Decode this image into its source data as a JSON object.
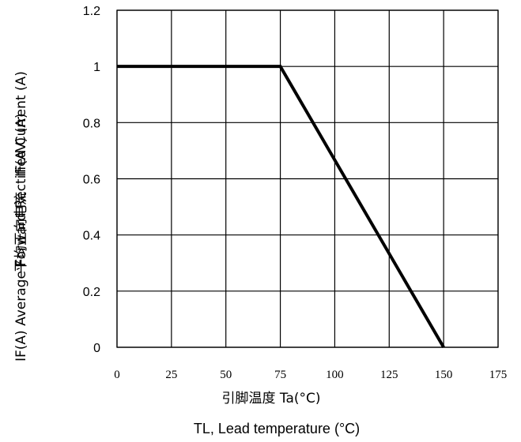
{
  "chart_data": {
    "type": "line",
    "xlabel": "引脚温度 Ta(°C)",
    "xlabel_secondary": "TL, Lead temperature (°C)",
    "ylabel": "IF(A)  Average Forward Rectified Current (A)",
    "ylabel_cn": "平均正向电流",
    "ylabel_symbol": "IF(AV) (A)",
    "xlim": [
      0,
      175
    ],
    "ylim": [
      0,
      1.2
    ],
    "x_ticks": [
      "0",
      "25",
      "50",
      "75",
      "100",
      "125",
      "150",
      "175"
    ],
    "y_ticks": [
      "0",
      "0.2",
      "0.4",
      "0.6",
      "0.8",
      "1",
      "1.2"
    ],
    "grid": true,
    "series": [
      {
        "x": [
          0,
          75,
          150
        ],
        "y": [
          1,
          1,
          0
        ],
        "color": "#000000"
      }
    ]
  }
}
